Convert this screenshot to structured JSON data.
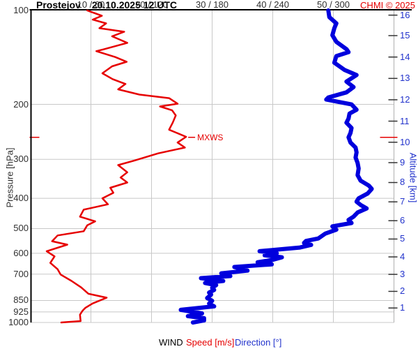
{
  "header": {
    "station": "Prostejov",
    "datetime": "20.10.2025 12 UTC",
    "copyright": "CHMI © 2025"
  },
  "axes": {
    "ylabel_left": "Pressure [hPa]",
    "ylabel_right": "Altitude [km]",
    "legend_wind": "WIND",
    "legend_speed": "Speed [m/s]",
    "legend_direction": "Direction [°]"
  },
  "colors": {
    "speed": "#e60000",
    "direction": "#0000dd",
    "grid": "#c8c8c8",
    "axis": "#000000",
    "altitude_text": "#2233cc",
    "right_axis_line": "#b0b0b0",
    "tick": "#333333"
  },
  "chart_data": {
    "type": "line",
    "title": "Prostejov 20.10.2025 12 UTC",
    "grid": true,
    "y_axis": {
      "scale": "log",
      "unit": "hPa",
      "top": 100,
      "bottom": 1000,
      "pressure_ticks": [
        100,
        200,
        300,
        400,
        500,
        600,
        700,
        850,
        925,
        1000
      ]
    },
    "x_axis": {
      "speed_range_mps": [
        0,
        60
      ],
      "direction_range_deg": [
        0,
        360
      ],
      "tick_labels": [
        "10 / 60",
        "20 / 120",
        "30 / 180",
        "40 / 240",
        "50 / 300"
      ],
      "speed_per_tick": 10,
      "direction_per_tick": 60
    },
    "altitude_ticks": [
      {
        "km": 16,
        "hpa": 103.5
      },
      {
        "km": 15,
        "hpa": 120.4
      },
      {
        "km": 14,
        "hpa": 141.0
      },
      {
        "km": 13,
        "hpa": 165.1
      },
      {
        "km": 12,
        "hpa": 193.3
      },
      {
        "km": 11,
        "hpa": 226.3
      },
      {
        "km": 10,
        "hpa": 264.4
      },
      {
        "km": 9,
        "hpa": 307.4
      },
      {
        "km": 8,
        "hpa": 356.0
      },
      {
        "km": 7,
        "hpa": 410.6
      },
      {
        "km": 6,
        "hpa": 471.8
      },
      {
        "km": 5,
        "hpa": 540.2
      },
      {
        "km": 4,
        "hpa": 616.4
      },
      {
        "km": 3,
        "hpa": 701.1
      },
      {
        "km": 2,
        "hpa": 794.9
      },
      {
        "km": 1,
        "hpa": 898.7
      }
    ],
    "mxws": {
      "label": "MXWS",
      "pressure_hpa": 255,
      "speed_mps": 25.7
    },
    "series": [
      {
        "name": "Speed [m/s]",
        "color": "#e60000",
        "width": 2.5,
        "points": [
          [
            100,
            9.4
          ],
          [
            104,
            11.8
          ],
          [
            107,
            10.3
          ],
          [
            110,
            12.5
          ],
          [
            114,
            11.4
          ],
          [
            117,
            15.5
          ],
          [
            121,
            13.5
          ],
          [
            127,
            16.0
          ],
          [
            133,
            12.2
          ],
          [
            135,
            10.9
          ],
          [
            141,
            14.0
          ],
          [
            146,
            15.9
          ],
          [
            151,
            13.5
          ],
          [
            159,
            11.9
          ],
          [
            166,
            13.6
          ],
          [
            172,
            15.7
          ],
          [
            179,
            14.5
          ],
          [
            186,
            18.0
          ],
          [
            191,
            22.9
          ],
          [
            199,
            24.3
          ],
          [
            203,
            21.4
          ],
          [
            209,
            23.4
          ],
          [
            217,
            24.0
          ],
          [
            229,
            23.5
          ],
          [
            241,
            22.9
          ],
          [
            254,
            25.7
          ],
          [
            265,
            24.3
          ],
          [
            275,
            25.5
          ],
          [
            287,
            21.1
          ],
          [
            303,
            17.1
          ],
          [
            313,
            14.5
          ],
          [
            330,
            16.0
          ],
          [
            343,
            14.9
          ],
          [
            356,
            16.0
          ],
          [
            370,
            13.2
          ],
          [
            384,
            13.7
          ],
          [
            400,
            11.9
          ],
          [
            418,
            12.8
          ],
          [
            435,
            8.8
          ],
          [
            458,
            8.2
          ],
          [
            474,
            10.7
          ],
          [
            488,
            9.4
          ],
          [
            510,
            8.8
          ],
          [
            526,
            4.5
          ],
          [
            549,
            3.6
          ],
          [
            563,
            6.1
          ],
          [
            591,
            2.7
          ],
          [
            614,
            4.0
          ],
          [
            644,
            3.3
          ],
          [
            675,
            4.5
          ],
          [
            702,
            5.0
          ],
          [
            736,
            6.8
          ],
          [
            772,
            8.4
          ],
          [
            809,
            9.6
          ],
          [
            833,
            12.6
          ],
          [
            869,
            10.3
          ],
          [
            897,
            9.1
          ],
          [
            918,
            8.6
          ],
          [
            944,
            8.2
          ],
          [
            990,
            8.3
          ],
          [
            1000,
            5.1
          ]
        ]
      },
      {
        "name": "Direction [°]",
        "color": "#0000dd",
        "width": 6,
        "points": [
          [
            100,
            295
          ],
          [
            105,
            296
          ],
          [
            110,
            303
          ],
          [
            114,
            301
          ],
          [
            120,
            299
          ],
          [
            126,
            303
          ],
          [
            133,
            313
          ],
          [
            136,
            315
          ],
          [
            140,
            303
          ],
          [
            147,
            301
          ],
          [
            155,
            311
          ],
          [
            161,
            323
          ],
          [
            169,
            313
          ],
          [
            176,
            320
          ],
          [
            183,
            313
          ],
          [
            190,
            295
          ],
          [
            193,
            293
          ],
          [
            200,
            318
          ],
          [
            208,
            323
          ],
          [
            214,
            316
          ],
          [
            222,
            315
          ],
          [
            229,
            313
          ],
          [
            238,
            318
          ],
          [
            247,
            317
          ],
          [
            255,
            315
          ],
          [
            265,
            317
          ],
          [
            275,
            322
          ],
          [
            285,
            323
          ],
          [
            296,
            322
          ],
          [
            308,
            324
          ],
          [
            321,
            325
          ],
          [
            337,
            324
          ],
          [
            351,
            327
          ],
          [
            364,
            335
          ],
          [
            373,
            338
          ],
          [
            386,
            334
          ],
          [
            400,
            325
          ],
          [
            410,
            323
          ],
          [
            420,
            327
          ],
          [
            431,
            333
          ],
          [
            444,
            324
          ],
          [
            458,
            320
          ],
          [
            469,
            315
          ],
          [
            480,
            318
          ],
          [
            492,
            299
          ],
          [
            504,
            303
          ],
          [
            519,
            292
          ],
          [
            538,
            285
          ],
          [
            548,
            273
          ],
          [
            556,
            271
          ],
          [
            564,
            278
          ],
          [
            575,
            267
          ],
          [
            591,
            227
          ],
          [
            600,
            244
          ],
          [
            609,
            232
          ],
          [
            618,
            249
          ],
          [
            631,
            239
          ],
          [
            641,
            225
          ],
          [
            651,
            239
          ],
          [
            664,
            202
          ],
          [
            682,
            215
          ],
          [
            696,
            189
          ],
          [
            710,
            198
          ],
          [
            721,
            169
          ],
          [
            736,
            191
          ],
          [
            747,
            173
          ],
          [
            759,
            184
          ],
          [
            774,
            180
          ],
          [
            786,
            182
          ],
          [
            802,
            177
          ],
          [
            814,
            179
          ],
          [
            835,
            175
          ],
          [
            852,
            180
          ],
          [
            870,
            177
          ],
          [
            888,
            182
          ],
          [
            911,
            149
          ],
          [
            935,
            170
          ],
          [
            954,
            156
          ],
          [
            969,
            172
          ],
          [
            985,
            172
          ],
          [
            1000,
            161
          ]
        ]
      }
    ]
  }
}
